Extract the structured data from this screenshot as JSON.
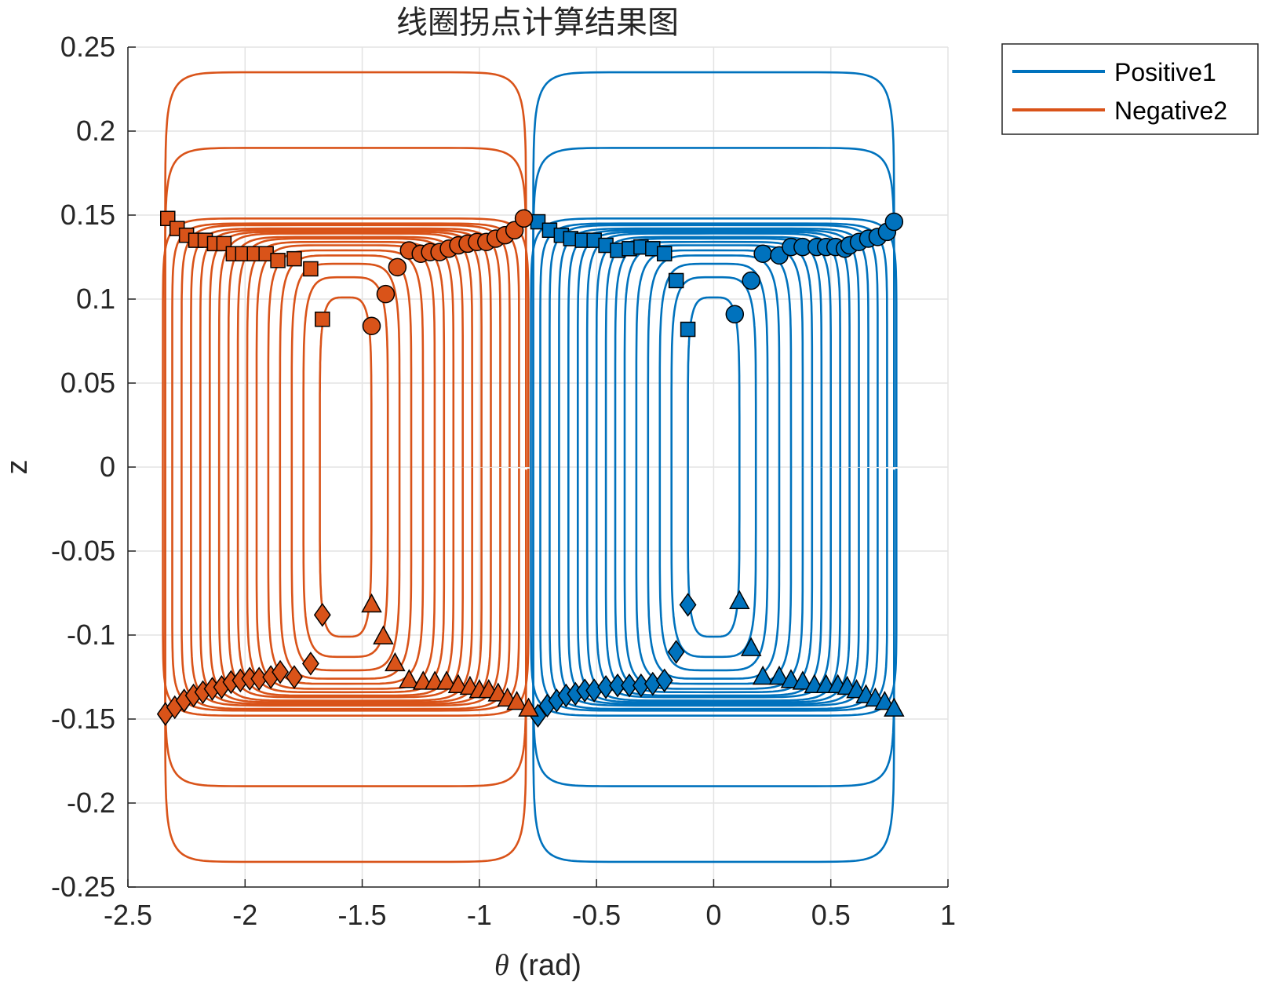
{
  "chart_data": {
    "type": "line",
    "title": "线圈拐点计算结果图",
    "xlabel_symbol": "θ",
    "xlabel_unit": "(rad)",
    "ylabel": "z",
    "xlim": [
      -2.5,
      1
    ],
    "ylim": [
      -0.25,
      0.25
    ],
    "xticks": [
      -2.5,
      -2,
      -1.5,
      -1,
      -0.5,
      0,
      0.5,
      1
    ],
    "yticks": [
      -0.25,
      -0.2,
      -0.15,
      -0.1,
      -0.05,
      0,
      0.05,
      0.1,
      0.15,
      0.2,
      0.25
    ],
    "xtick_labels": [
      "-2.5",
      "-2",
      "-1.5",
      "-1",
      "-0.5",
      "0",
      "0.5",
      "1"
    ],
    "ytick_labels": [
      "-0.25",
      "-0.2",
      "-0.15",
      "-0.1",
      "-0.05",
      "0",
      "0.05",
      "0.1",
      "0.15",
      "0.2",
      "0.25"
    ],
    "grid": true,
    "legend_position": "outside-top-right",
    "series": [
      {
        "name": "Positive1",
        "color": "#0072BD",
        "center": 0,
        "contours": [
          {
            "half_width": 0.11,
            "half_height": 0.101
          },
          {
            "half_width": 0.18,
            "half_height": 0.113
          },
          {
            "half_width": 0.23,
            "half_height": 0.121
          },
          {
            "half_width": 0.28,
            "half_height": 0.126
          },
          {
            "half_width": 0.33,
            "half_height": 0.129
          },
          {
            "half_width": 0.38,
            "half_height": 0.132
          },
          {
            "half_width": 0.42,
            "half_height": 0.134
          },
          {
            "half_width": 0.46,
            "half_height": 0.136
          },
          {
            "half_width": 0.5,
            "half_height": 0.137
          },
          {
            "half_width": 0.54,
            "half_height": 0.139
          },
          {
            "half_width": 0.58,
            "half_height": 0.14
          },
          {
            "half_width": 0.62,
            "half_height": 0.141
          },
          {
            "half_width": 0.66,
            "half_height": 0.142
          },
          {
            "half_width": 0.7,
            "half_height": 0.144
          },
          {
            "half_width": 0.74,
            "half_height": 0.145
          },
          {
            "half_width": 0.78,
            "half_height": 0.148
          },
          {
            "half_width": 0.77,
            "half_height": 0.19
          },
          {
            "half_width": 0.77,
            "half_height": 0.235
          }
        ],
        "markers": {
          "circle": [
            [
              0.09,
              0.091
            ],
            [
              0.16,
              0.111
            ],
            [
              0.21,
              0.127
            ],
            [
              0.28,
              0.126
            ],
            [
              0.33,
              0.131
            ],
            [
              0.38,
              0.131
            ],
            [
              0.44,
              0.131
            ],
            [
              0.48,
              0.131
            ],
            [
              0.52,
              0.131
            ],
            [
              0.56,
              0.13
            ],
            [
              0.58,
              0.132
            ],
            [
              0.62,
              0.134
            ],
            [
              0.66,
              0.136
            ],
            [
              0.7,
              0.137
            ],
            [
              0.74,
              0.14
            ],
            [
              0.77,
              0.146
            ]
          ],
          "square": [
            [
              -0.75,
              0.146
            ],
            [
              -0.7,
              0.141
            ],
            [
              -0.65,
              0.138
            ],
            [
              -0.61,
              0.136
            ],
            [
              -0.56,
              0.135
            ],
            [
              -0.51,
              0.135
            ],
            [
              -0.46,
              0.132
            ],
            [
              -0.41,
              0.129
            ],
            [
              -0.36,
              0.13
            ],
            [
              -0.31,
              0.131
            ],
            [
              -0.26,
              0.13
            ],
            [
              -0.21,
              0.127
            ],
            [
              -0.16,
              0.111
            ],
            [
              -0.11,
              0.082
            ]
          ],
          "diamond": [
            [
              -0.75,
              -0.148
            ],
            [
              -0.71,
              -0.142
            ],
            [
              -0.67,
              -0.139
            ],
            [
              -0.63,
              -0.136
            ],
            [
              -0.59,
              -0.135
            ],
            [
              -0.55,
              -0.133
            ],
            [
              -0.51,
              -0.133
            ],
            [
              -0.46,
              -0.131
            ],
            [
              -0.41,
              -0.13
            ],
            [
              -0.36,
              -0.13
            ],
            [
              -0.31,
              -0.13
            ],
            [
              -0.26,
              -0.129
            ],
            [
              -0.21,
              -0.127
            ],
            [
              -0.16,
              -0.11
            ],
            [
              -0.11,
              -0.082
            ]
          ],
          "triangle": [
            [
              0.11,
              -0.08
            ],
            [
              0.16,
              -0.108
            ],
            [
              0.21,
              -0.125
            ],
            [
              0.28,
              -0.125
            ],
            [
              0.33,
              -0.127
            ],
            [
              0.38,
              -0.128
            ],
            [
              0.43,
              -0.13
            ],
            [
              0.48,
              -0.13
            ],
            [
              0.53,
              -0.13
            ],
            [
              0.57,
              -0.131
            ],
            [
              0.61,
              -0.133
            ],
            [
              0.65,
              -0.136
            ],
            [
              0.69,
              -0.138
            ],
            [
              0.73,
              -0.14
            ],
            [
              0.77,
              -0.144
            ]
          ]
        }
      },
      {
        "name": "Negative2",
        "color": "#D95319",
        "center": -1.5708,
        "contours": [
          {
            "half_width": 0.11,
            "half_height": 0.101
          },
          {
            "half_width": 0.18,
            "half_height": 0.113
          },
          {
            "half_width": 0.23,
            "half_height": 0.121
          },
          {
            "half_width": 0.28,
            "half_height": 0.126
          },
          {
            "half_width": 0.33,
            "half_height": 0.129
          },
          {
            "half_width": 0.38,
            "half_height": 0.132
          },
          {
            "half_width": 0.42,
            "half_height": 0.134
          },
          {
            "half_width": 0.46,
            "half_height": 0.136
          },
          {
            "half_width": 0.5,
            "half_height": 0.137
          },
          {
            "half_width": 0.54,
            "half_height": 0.139
          },
          {
            "half_width": 0.58,
            "half_height": 0.14
          },
          {
            "half_width": 0.62,
            "half_height": 0.141
          },
          {
            "half_width": 0.66,
            "half_height": 0.142
          },
          {
            "half_width": 0.7,
            "half_height": 0.144
          },
          {
            "half_width": 0.74,
            "half_height": 0.145
          },
          {
            "half_width": 0.78,
            "half_height": 0.148
          },
          {
            "half_width": 0.77,
            "half_height": 0.19
          },
          {
            "half_width": 0.77,
            "half_height": 0.235
          }
        ],
        "markers": {
          "circle": [
            [
              -1.46,
              0.084
            ],
            [
              -1.4,
              0.103
            ],
            [
              -1.35,
              0.119
            ],
            [
              -1.3,
              0.129
            ],
            [
              -1.25,
              0.127
            ],
            [
              -1.21,
              0.128
            ],
            [
              -1.17,
              0.128
            ],
            [
              -1.13,
              0.13
            ],
            [
              -1.09,
              0.132
            ],
            [
              -1.05,
              0.133
            ],
            [
              -1.01,
              0.134
            ],
            [
              -0.97,
              0.134
            ],
            [
              -0.93,
              0.136
            ],
            [
              -0.89,
              0.138
            ],
            [
              -0.85,
              0.141
            ],
            [
              -0.81,
              0.148
            ]
          ],
          "square": [
            [
              -2.33,
              0.148
            ],
            [
              -2.29,
              0.142
            ],
            [
              -2.25,
              0.138
            ],
            [
              -2.21,
              0.135
            ],
            [
              -2.17,
              0.135
            ],
            [
              -2.13,
              0.133
            ],
            [
              -2.09,
              0.133
            ],
            [
              -2.05,
              0.127
            ],
            [
              -2.01,
              0.127
            ],
            [
              -1.96,
              0.127
            ],
            [
              -1.91,
              0.127
            ],
            [
              -1.86,
              0.123
            ],
            [
              -1.79,
              0.124
            ],
            [
              -1.72,
              0.118
            ],
            [
              -1.67,
              0.088
            ]
          ],
          "diamond": [
            [
              -2.34,
              -0.147
            ],
            [
              -2.3,
              -0.143
            ],
            [
              -2.26,
              -0.139
            ],
            [
              -2.22,
              -0.136
            ],
            [
              -2.18,
              -0.134
            ],
            [
              -2.14,
              -0.132
            ],
            [
              -2.1,
              -0.131
            ],
            [
              -2.06,
              -0.128
            ],
            [
              -2.02,
              -0.127
            ],
            [
              -1.98,
              -0.126
            ],
            [
              -1.94,
              -0.126
            ],
            [
              -1.89,
              -0.125
            ],
            [
              -1.85,
              -0.122
            ],
            [
              -1.79,
              -0.125
            ],
            [
              -1.72,
              -0.117
            ],
            [
              -1.67,
              -0.088
            ]
          ],
          "triangle": [
            [
              -1.46,
              -0.082
            ],
            [
              -1.41,
              -0.101
            ],
            [
              -1.36,
              -0.117
            ],
            [
              -1.3,
              -0.127
            ],
            [
              -1.24,
              -0.128
            ],
            [
              -1.19,
              -0.128
            ],
            [
              -1.14,
              -0.128
            ],
            [
              -1.09,
              -0.13
            ],
            [
              -1.04,
              -0.131
            ],
            [
              -1.0,
              -0.133
            ],
            [
              -0.96,
              -0.133
            ],
            [
              -0.92,
              -0.135
            ],
            [
              -0.88,
              -0.138
            ],
            [
              -0.84,
              -0.14
            ],
            [
              -0.79,
              -0.144
            ]
          ]
        }
      }
    ]
  }
}
